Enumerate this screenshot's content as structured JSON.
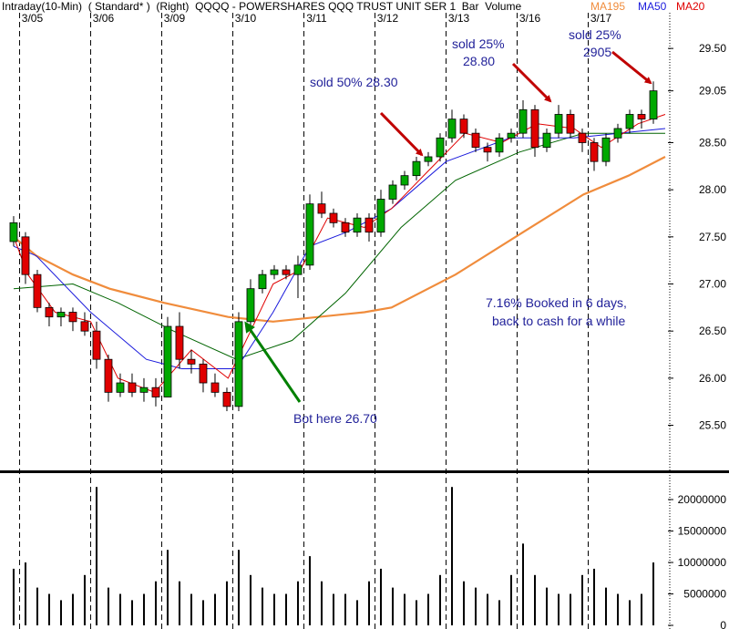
{
  "chart_data": {
    "type": "candlestick",
    "title": "Intraday(10-Min)  ( Standard* )  (Right)  QQQQ - POWERSHARES QQQ TRUST UNIT SER 1  Bar  Volume",
    "days": [
      "3/05",
      "3/06",
      "3/09",
      "3/10",
      "3/11",
      "3/12",
      "3/13",
      "3/16",
      "3/17"
    ],
    "day_starts": [
      1,
      7,
      13,
      19,
      25,
      31,
      37,
      43,
      49
    ],
    "xlim": [
      -0.92,
      55.23
    ],
    "ylim": [
      25.06,
      29.84
    ],
    "yticks": [
      {
        "value": 25.5,
        "label": "25.50"
      },
      {
        "value": 26,
        "label": "26.00"
      },
      {
        "value": 26.5,
        "label": "26.50"
      },
      {
        "value": 27,
        "label": "27.00"
      },
      {
        "value": 27.5,
        "label": "27.50"
      },
      {
        "value": 28,
        "label": "28.00"
      },
      {
        "value": 28.5,
        "label": "28.50"
      },
      29.05,
      {
        "value": 29.5,
        "label": "29.50"
      }
    ],
    "up_color": "#00a800",
    "down_color": "#e00000",
    "open": [
      27.45,
      27.5,
      27.1,
      26.75,
      26.65,
      26.7,
      26.6,
      26.5,
      26.2,
      25.85,
      25.95,
      25.85,
      25.9,
      25.8,
      26.55,
      26.2,
      26.15,
      25.95,
      25.85,
      25.7,
      26.6,
      26.95,
      27.1,
      27.15,
      27.1,
      27.2,
      27.85,
      27.75,
      27.65,
      27.55,
      27.7,
      27.55,
      27.9,
      28.05,
      28.15,
      28.3,
      28.35,
      28.55,
      28.75,
      28.6,
      28.45,
      28.4,
      28.55,
      28.6,
      28.85,
      28.45,
      28.6,
      28.8,
      28.6,
      28.5,
      28.3,
      28.55,
      28.65,
      28.8,
      28.75
    ],
    "high": [
      27.72,
      27.55,
      27.15,
      26.8,
      26.75,
      26.75,
      26.7,
      26.6,
      26.25,
      26.05,
      26.05,
      26.0,
      26.0,
      26.65,
      26.7,
      26.3,
      26.2,
      26.05,
      25.9,
      26.7,
      27.05,
      27.15,
      27.2,
      27.2,
      27.3,
      27.95,
      27.98,
      27.8,
      27.7,
      27.75,
      27.75,
      28.0,
      28.1,
      28.2,
      28.35,
      28.4,
      28.6,
      28.85,
      28.8,
      28.65,
      28.5,
      28.6,
      28.65,
      28.95,
      28.9,
      28.65,
      28.9,
      28.85,
      28.65,
      28.55,
      28.6,
      28.7,
      28.85,
      28.85,
      29.15
    ],
    "low": [
      27.4,
      27.0,
      26.7,
      26.55,
      26.55,
      26.5,
      26.45,
      26.1,
      25.75,
      25.8,
      25.8,
      25.75,
      25.7,
      25.8,
      26.1,
      26.05,
      25.85,
      25.8,
      25.65,
      25.65,
      26.55,
      26.9,
      27.05,
      27.05,
      26.85,
      27.15,
      27.7,
      27.6,
      27.5,
      27.5,
      27.45,
      27.5,
      27.85,
      28.0,
      28.1,
      28.25,
      28.3,
      28.5,
      28.55,
      28.4,
      28.3,
      28.35,
      28.5,
      28.55,
      28.35,
      28.4,
      28.55,
      28.55,
      28.4,
      28.2,
      28.25,
      28.5,
      28.6,
      28.65,
      28.7
    ],
    "close": [
      27.65,
      27.1,
      26.75,
      26.65,
      26.7,
      26.6,
      26.5,
      26.2,
      25.85,
      25.95,
      25.85,
      25.9,
      25.8,
      26.55,
      26.2,
      26.15,
      25.95,
      25.85,
      25.7,
      26.6,
      26.95,
      27.1,
      27.15,
      27.1,
      27.2,
      27.85,
      27.75,
      27.65,
      27.55,
      27.7,
      27.55,
      27.9,
      28.05,
      28.15,
      28.3,
      28.35,
      28.55,
      28.75,
      28.6,
      28.45,
      28.4,
      28.55,
      28.6,
      28.85,
      28.45,
      28.6,
      28.8,
      28.6,
      28.5,
      28.3,
      28.55,
      28.65,
      28.8,
      28.75,
      29.05
    ],
    "series": [
      {
        "name": "MA195",
        "color": "#f08c3c",
        "x": [
          0,
          1.9,
          5,
          8.1,
          12.7,
          18.1,
          21.9,
          29.6,
          31.9,
          37.3,
          43,
          48.1,
          51.9,
          55
        ],
        "values": [
          27.5,
          27.3,
          27.1,
          26.95,
          26.8,
          26.65,
          26.6,
          26.7,
          26.75,
          27.1,
          27.55,
          27.95,
          28.15,
          28.35
        ]
      },
      {
        "color": "#006400",
        "x": [
          0,
          5,
          8.8,
          13.5,
          18.8,
          23.5,
          28,
          32.7,
          37.3,
          42.7,
          48.1,
          55
        ],
        "values": [
          26.95,
          27.0,
          26.8,
          26.5,
          26.2,
          26.4,
          26.9,
          27.6,
          28.1,
          28.4,
          28.6,
          28.6
        ]
      },
      {
        "name": "MA50",
        "color": "#1a1adc",
        "x": [
          0,
          1.9,
          6.5,
          11.2,
          14.2,
          18.8,
          21.9,
          25,
          28.1,
          31.9,
          36.5,
          41.9,
          47.3,
          55
        ],
        "values": [
          27.4,
          27.3,
          26.7,
          26.2,
          26.1,
          26.1,
          26.7,
          27.4,
          27.55,
          27.8,
          28.3,
          28.55,
          28.55,
          28.65
        ]
      },
      {
        "name": "MA20",
        "color": "#e00000",
        "x": [
          0,
          1.2,
          3.5,
          6.5,
          8.8,
          11.9,
          15,
          18.1,
          20,
          21.9,
          24.2,
          26.5,
          29.6,
          31.9,
          35,
          38.1,
          41.2,
          44.2,
          47.3,
          49.6,
          52.7,
          55
        ],
        "values": [
          27.5,
          27.1,
          26.7,
          26.6,
          26.0,
          25.85,
          26.3,
          26.0,
          26.5,
          27.0,
          27.15,
          27.7,
          27.6,
          27.8,
          28.2,
          28.6,
          28.5,
          28.7,
          28.65,
          28.45,
          28.7,
          28.8
        ]
      }
    ],
    "annotations": [
      "sold 50% 28.30",
      "sold 25%",
      "28.80",
      "sold 25%",
      "2905",
      "7.16% Booked in 6 days,",
      "back to cash for a while",
      "Bot here 26.70"
    ],
    "volume": {
      "values": [
        9000000,
        10000000,
        6000000,
        5000000,
        4000000,
        5000000,
        8000000,
        22000000,
        6000000,
        5000000,
        4000000,
        5000000,
        7000000,
        12000000,
        7000000,
        5000000,
        4000000,
        5000000,
        7000000,
        12000000,
        8000000,
        6000000,
        5000000,
        5000000,
        7000000,
        11000000,
        7000000,
        5000000,
        5000000,
        4000000,
        7000000,
        9000000,
        6000000,
        5000000,
        4000000,
        5000000,
        8000000,
        22000000,
        7000000,
        6000000,
        5000000,
        4000000,
        8000000,
        13000000,
        8000000,
        6000000,
        5000000,
        5000000,
        8000000,
        9000000,
        6000000,
        5000000,
        4000000,
        5000000,
        10000000
      ],
      "color": "#000000",
      "ylim": [
        0,
        23770000
      ],
      "yticks": [
        0,
        5000000,
        10000000,
        15000000,
        20000000
      ]
    }
  }
}
